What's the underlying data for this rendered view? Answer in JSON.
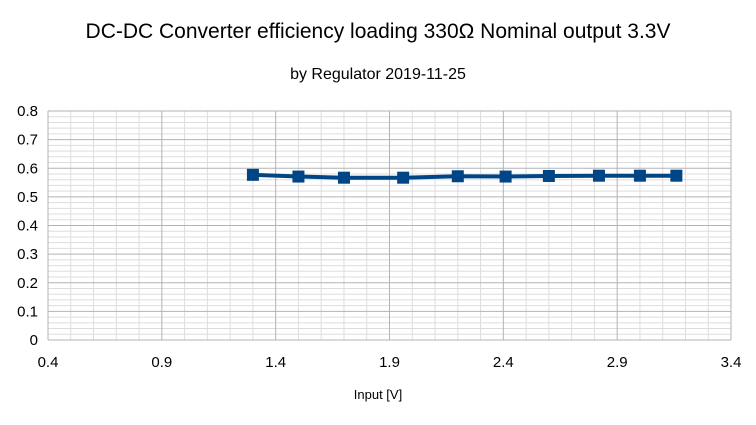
{
  "chart_data": {
    "type": "scatter",
    "title": "DC-DC Converter efficiency loading 330Ω Nominal output 3.3V",
    "subtitle": "by Regulator 2019-11-25",
    "xlabel": "Input [V]",
    "ylabel": "",
    "xlim": [
      0.4,
      3.4
    ],
    "ylim": [
      0,
      0.8
    ],
    "x_ticks": [
      "0.4",
      "0.9",
      "1.4",
      "1.9",
      "2.4",
      "2.9",
      "3.4"
    ],
    "y_ticks": [
      "0",
      "0.1",
      "0.2",
      "0.3",
      "0.4",
      "0.5",
      "0.6",
      "0.7",
      "0.8"
    ],
    "grid": true,
    "legend": "none",
    "series": [
      {
        "color": "#004586",
        "marker": "square",
        "x": [
          1.3,
          1.5,
          1.7,
          1.96,
          2.2,
          2.41,
          2.6,
          2.82,
          3.0,
          3.16
        ],
        "y": [
          0.577,
          0.571,
          0.567,
          0.567,
          0.572,
          0.571,
          0.573,
          0.574,
          0.574,
          0.574
        ]
      }
    ]
  }
}
